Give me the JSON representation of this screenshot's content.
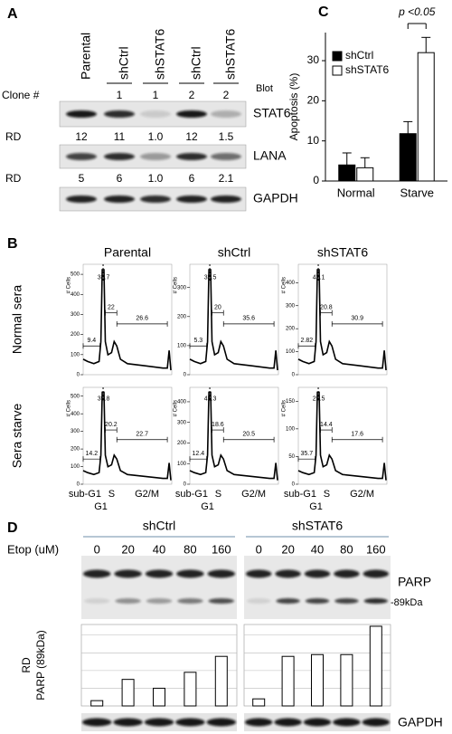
{
  "panel_a": {
    "label": "A",
    "lanes": [
      "Parental",
      "shCtrl",
      "shSTAT6",
      "shCtrl",
      "shSTAT6"
    ],
    "clone_label": "Clone #",
    "clones": [
      null,
      "1",
      "1",
      "2",
      "2"
    ],
    "blot_label": "Blot",
    "blots": [
      "STAT6",
      "LANA",
      "GAPDH"
    ],
    "rd_label": "RD",
    "rd_rows": [
      [
        "12",
        "11",
        "1.0",
        "12",
        "1.5"
      ],
      [
        "5",
        "6",
        "1.0",
        "6",
        "2.1"
      ]
    ]
  },
  "panel_b": {
    "label": "B",
    "columns": [
      "Parental",
      "shCtrl",
      "shSTAT6"
    ],
    "rows": [
      "Normal sera",
      "Sera starve"
    ],
    "y_label": "# Cells",
    "x_labels": [
      "sub-G1",
      "S",
      "G2/M",
      "G1"
    ],
    "plots": [
      [
        {
          "ylim": [
            0,
            550
          ],
          "yticks": [
            0,
            100,
            200,
            300,
            400,
            500
          ],
          "g1": "38.7",
          "s": "22",
          "sub_g1": "9.4",
          "g2m": "26.6"
        },
        {
          "ylim": [
            0,
            380
          ],
          "yticks": [
            0,
            100,
            200,
            300
          ],
          "g1": "35.5",
          "s": "20",
          "sub_g1": "5.3",
          "g2m": "35.6"
        },
        {
          "ylim": [
            0,
            480
          ],
          "yticks": [
            0,
            100,
            200,
            300,
            400
          ],
          "g1": "42.1",
          "s": "20.8",
          "sub_g1": "2.82",
          "g2m": "30.9"
        }
      ],
      [
        {
          "ylim": [
            0,
            550
          ],
          "yticks": [
            0,
            100,
            200,
            300,
            400,
            500
          ],
          "g1": "39.8",
          "s": "20.2",
          "sub_g1": "14.2",
          "g2m": "22.7"
        },
        {
          "ylim": [
            0,
            470
          ],
          "yticks": [
            0,
            100,
            200,
            300,
            400
          ],
          "g1": "41.3",
          "s": "18.6",
          "sub_g1": "12.4",
          "g2m": "20.5"
        },
        {
          "ylim": [
            0,
            175
          ],
          "yticks": [
            0,
            50,
            100,
            150
          ],
          "g1": "29.5",
          "s": "14.4",
          "sub_g1": "35.7",
          "g2m": "17.6"
        }
      ]
    ]
  },
  "panel_c": {
    "label": "C"
  },
  "panel_d": {
    "label": "D",
    "blots": [
      "PARP",
      "GAPDH"
    ],
    "band_label": "-89kDa"
  },
  "chart_data": [
    {
      "type": "bar",
      "y_label": "Apoptosis (%)",
      "categories": [
        "Normal",
        "Starve"
      ],
      "series": [
        {
          "name": "shCtrl",
          "color": "#000000",
          "values": [
            4,
            11.8
          ],
          "errors": [
            3,
            3
          ]
        },
        {
          "name": "shSTAT6",
          "color": "#ffffff",
          "values": [
            3.3,
            32
          ],
          "errors": [
            2.5,
            3.8
          ]
        }
      ],
      "ylim": [
        0,
        37
      ],
      "yticks": [
        0,
        10,
        20,
        30
      ],
      "annotation": "p <0.05",
      "legend": "upper left"
    },
    {
      "type": "bar",
      "x_label": "Etop (uM)",
      "y_label": [
        "RD",
        "PARP (89kDa)"
      ],
      "categories": [
        "0",
        "20",
        "40",
        "80",
        "160"
      ],
      "series": [
        {
          "name": "shCtrl",
          "color": "#ffffff",
          "values": [
            0.3,
            1.5,
            1.0,
            1.9,
            2.8
          ]
        },
        {
          "name": "shSTAT6",
          "color": "#ffffff",
          "values": [
            0.4,
            2.8,
            2.9,
            2.9,
            4.5
          ]
        }
      ],
      "ylim": [
        0,
        4.6
      ],
      "grid": true
    }
  ]
}
